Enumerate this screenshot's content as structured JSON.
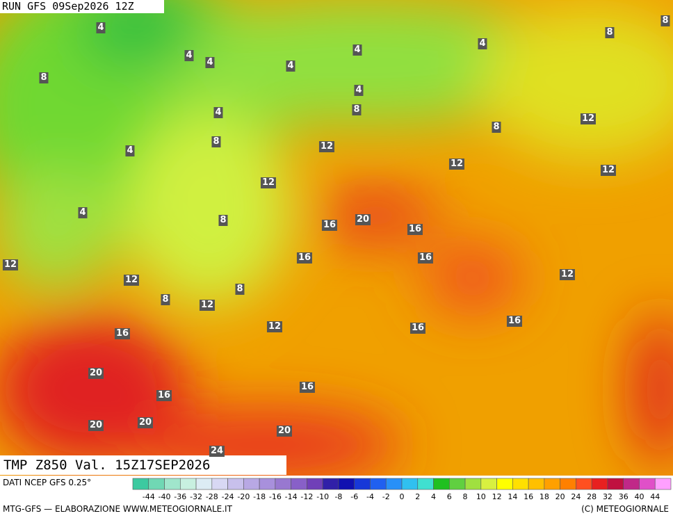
{
  "header": "RUN GFS 09Sep2026 12Z",
  "title": "TMP Z850 Val. 15Z17SEP2026",
  "source": "DATI NCEP GFS 0.25°",
  "footer_left": "MTG-GFS — ELABORAZIONE WWW.METEOGIORNALE.IT",
  "footer_right": "(C) METEOGIORNALE",
  "map_labels": [
    4,
    4,
    4,
    8,
    4,
    4,
    4,
    8,
    8,
    4,
    4,
    8,
    12,
    8,
    8,
    4,
    12,
    12,
    12,
    12,
    4,
    8,
    16,
    20,
    16,
    12,
    16,
    16,
    12,
    12,
    8,
    8,
    12,
    12,
    16,
    16,
    16,
    20,
    16,
    16,
    20,
    20,
    20,
    24
  ],
  "scale": {
    "labels": [
      -44,
      -40,
      -36,
      -32,
      -28,
      -24,
      -20,
      -18,
      -16,
      -14,
      -12,
      -10,
      -8,
      -6,
      -4,
      -2,
      0,
      2,
      4,
      6,
      8,
      10,
      12,
      14,
      16,
      18,
      20,
      24,
      28,
      32,
      36,
      40,
      44
    ],
    "colors": [
      "#3ccaa0",
      "#70d8b4",
      "#a0e6cc",
      "#c8f0e0",
      "#dcecf4",
      "#d8d8f4",
      "#c8c0ec",
      "#b8a8e4",
      "#a890dc",
      "#9878d0",
      "#8860c8",
      "#7040b8",
      "#3020a8",
      "#1010b0",
      "#1838d8",
      "#2060f0",
      "#2890f8",
      "#30c0f0",
      "#40e0d0",
      "#20c020",
      "#60d040",
      "#a0e040",
      "#d8f040",
      "#ffff00",
      "#ffe000",
      "#ffc000",
      "#ffa000",
      "#ff8000",
      "#ff5020",
      "#e82020",
      "#c01040",
      "#c02888",
      "#e050c8",
      "#ffa0ff"
    ]
  }
}
